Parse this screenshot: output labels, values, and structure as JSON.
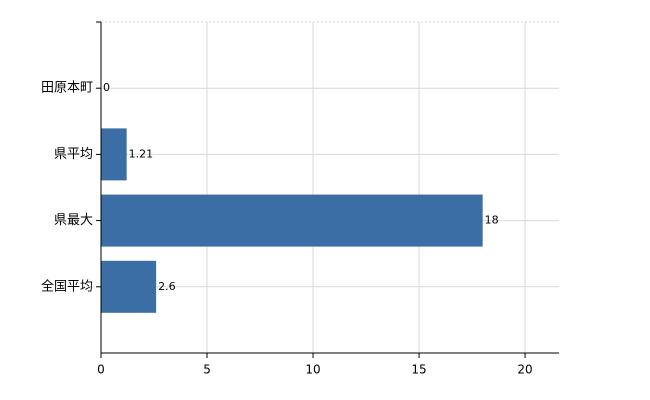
{
  "chart_data": {
    "type": "barh",
    "categories": [
      "田原本町",
      "県平均",
      "県最大",
      "全国平均"
    ],
    "values": [
      0,
      1.21,
      18,
      2.6
    ],
    "color": "#3a6ea5",
    "xlim": [
      0,
      21.6
    ],
    "xticks": [
      0,
      5,
      10,
      15,
      20
    ],
    "grid": true
  }
}
